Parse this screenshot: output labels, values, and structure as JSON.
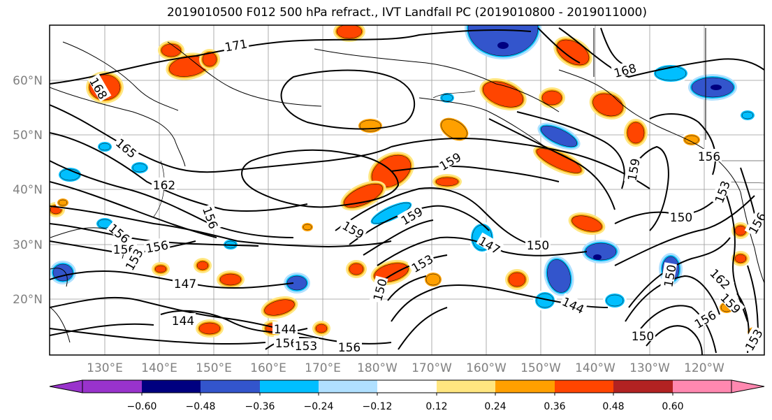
{
  "title": "2019010500 F012 500 hPa refract., IVT Landfall PC (2019010800 - 2019011000)",
  "lat_labels": [
    "60°N",
    "50°N",
    "40°N",
    "30°N",
    "20°N"
  ],
  "lon_labels": [
    "130°E",
    "140°E",
    "150°E",
    "160°E",
    "170°E",
    "180°W",
    "170°W",
    "160°W",
    "150°W",
    "140°W",
    "130°W",
    "120°W"
  ],
  "colorbar": {
    "colors": [
      "#9933cc",
      "#000080",
      "#3355cc",
      "#00bfff",
      "#b0e0ff",
      "#ffffff",
      "#ffe680",
      "#ffa000",
      "#ff4500",
      "#b22222",
      "#ff88b0"
    ],
    "tick_labels": [
      "-0.60",
      "-0.48",
      "-0.36",
      "-0.24",
      "-0.12",
      "0.12",
      "0.24",
      "0.36",
      "0.48",
      "0.60"
    ]
  },
  "contour_labels": [
    {
      "text": "171"
    },
    {
      "text": "168"
    },
    {
      "text": "168"
    },
    {
      "text": "165"
    },
    {
      "text": "162"
    },
    {
      "text": "156"
    },
    {
      "text": "156"
    },
    {
      "text": "156"
    },
    {
      "text": "159"
    },
    {
      "text": "159"
    },
    {
      "text": "153"
    },
    {
      "text": "147"
    },
    {
      "text": "150"
    },
    {
      "text": "147"
    },
    {
      "text": "144"
    },
    {
      "text": "144"
    },
    {
      "text": "144"
    },
    {
      "text": "156"
    },
    {
      "text": "153"
    },
    {
      "text": "150"
    },
    {
      "text": "159"
    },
    {
      "text": "153"
    },
    {
      "text": "159"
    },
    {
      "text": "150"
    },
    {
      "text": "162"
    },
    {
      "text": "159"
    },
    {
      "text": "156"
    },
    {
      "text": "150"
    },
    {
      "text": "153"
    },
    {
      "text": "156"
    },
    {
      "text": "156"
    },
    {
      "text": "156"
    },
    {
      "text": "153"
    },
    {
      "text": "150"
    },
    {
      "text": "156"
    }
  ],
  "icons": {
    "map": "map-plot-icon"
  }
}
